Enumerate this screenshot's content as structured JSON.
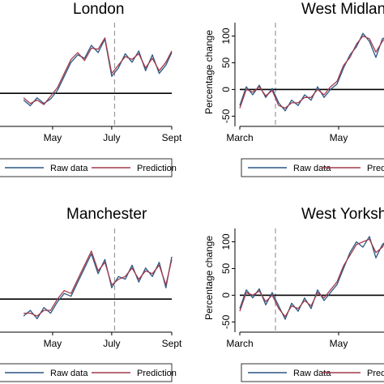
{
  "chart_data": [
    {
      "type": "line",
      "title": "London",
      "ylabel": "",
      "ylim": [
        -50,
        125
      ],
      "y_ticks": [],
      "x_ticks": [
        "May",
        "July",
        "Sept"
      ],
      "x_range": [
        "2020-03-01",
        "2020-09-01"
      ],
      "dashed_line_at": "2020-07-04",
      "legend": [
        "Raw data",
        "Prediction"
      ],
      "legend_placement": "bottom",
      "colors": {
        "raw": "#2a5783",
        "prediction": "#a23a4c"
      },
      "series": [
        {
          "name": "Raw data",
          "x": [
            "2020-04-01",
            "2020-04-08",
            "2020-04-15",
            "2020-04-22",
            "2020-04-29",
            "2020-05-06",
            "2020-05-13",
            "2020-05-20",
            "2020-05-27",
            "2020-06-03",
            "2020-06-10",
            "2020-06-17",
            "2020-06-24",
            "2020-07-01",
            "2020-07-08",
            "2020-07-15",
            "2020-07-22",
            "2020-07-29",
            "2020-08-05",
            "2020-08-12",
            "2020-08-19",
            "2020-08-26",
            "2020-09-01"
          ],
          "values": [
            -12,
            -22,
            -8,
            -18,
            -10,
            5,
            30,
            55,
            68,
            62,
            85,
            72,
            96,
            30,
            45,
            70,
            55,
            75,
            40,
            68,
            35,
            50,
            72
          ]
        },
        {
          "name": "Prediction",
          "x": [
            "2020-04-01",
            "2020-04-08",
            "2020-04-15",
            "2020-04-22",
            "2020-04-29",
            "2020-05-06",
            "2020-05-13",
            "2020-05-20",
            "2020-05-27",
            "2020-06-03",
            "2020-06-10",
            "2020-06-17",
            "2020-06-24",
            "2020-07-01",
            "2020-07-08",
            "2020-07-15",
            "2020-07-22",
            "2020-07-29",
            "2020-08-05",
            "2020-08-12",
            "2020-08-19",
            "2020-08-26",
            "2020-09-01"
          ],
          "values": [
            -8,
            -18,
            -12,
            -20,
            -5,
            10,
            35,
            60,
            72,
            58,
            80,
            78,
            98,
            35,
            50,
            65,
            60,
            70,
            45,
            62,
            40,
            55,
            75
          ]
        }
      ]
    },
    {
      "type": "line",
      "title": "West Midlands",
      "ylabel": "Percentage change",
      "ylim": [
        -60,
        125
      ],
      "y_ticks": [
        100,
        50,
        0,
        -50
      ],
      "x_ticks": [
        "March",
        "May"
      ],
      "x_range": [
        "2020-03-01",
        "2020-06-01"
      ],
      "dashed_line_at": "2020-03-23",
      "legend": [
        "Raw data",
        "Prediction"
      ],
      "legend_placement": "bottom",
      "colors": {
        "raw": "#2a5783",
        "prediction": "#a23a4c"
      },
      "series": [
        {
          "name": "Raw data",
          "x": [
            "2020-03-01",
            "2020-03-05",
            "2020-03-09",
            "2020-03-13",
            "2020-03-17",
            "2020-03-21",
            "2020-03-25",
            "2020-03-29",
            "2020-04-02",
            "2020-04-06",
            "2020-04-10",
            "2020-04-14",
            "2020-04-18",
            "2020-04-22",
            "2020-04-26",
            "2020-04-30",
            "2020-05-04",
            "2020-05-08",
            "2020-05-12",
            "2020-05-16",
            "2020-05-20",
            "2020-05-24",
            "2020-05-28",
            "2020-06-01"
          ],
          "values": [
            -30,
            5,
            -10,
            8,
            -15,
            2,
            -25,
            -40,
            -20,
            -30,
            -10,
            -20,
            5,
            -15,
            0,
            10,
            40,
            65,
            80,
            105,
            90,
            60,
            95,
            100
          ]
        },
        {
          "name": "Prediction",
          "x": [
            "2020-03-01",
            "2020-03-05",
            "2020-03-09",
            "2020-03-13",
            "2020-03-17",
            "2020-03-21",
            "2020-03-25",
            "2020-03-29",
            "2020-04-02",
            "2020-04-06",
            "2020-04-10",
            "2020-04-14",
            "2020-04-18",
            "2020-04-22",
            "2020-04-26",
            "2020-04-30",
            "2020-05-04",
            "2020-05-08",
            "2020-05-12",
            "2020-05-16",
            "2020-05-20",
            "2020-05-24",
            "2020-05-28",
            "2020-06-01"
          ],
          "values": [
            -35,
            0,
            -5,
            5,
            -12,
            -2,
            -30,
            -35,
            -25,
            -25,
            -15,
            -15,
            0,
            -10,
            5,
            15,
            45,
            60,
            85,
            100,
            95,
            70,
            90,
            105
          ]
        }
      ]
    },
    {
      "type": "line",
      "title": "Manchester",
      "ylabel": "",
      "ylim": [
        -50,
        125
      ],
      "y_ticks": [],
      "x_ticks": [
        "May",
        "July",
        "Sept"
      ],
      "x_range": [
        "2020-03-01",
        "2020-09-01"
      ],
      "dashed_line_at": "2020-07-04",
      "legend": [
        "Raw data",
        "Prediction"
      ],
      "legend_placement": "bottom",
      "colors": {
        "raw": "#2a5783",
        "prediction": "#a23a4c"
      },
      "series": [
        {
          "name": "Raw data",
          "x": [
            "2020-04-01",
            "2020-04-08",
            "2020-04-15",
            "2020-04-22",
            "2020-04-29",
            "2020-05-06",
            "2020-05-13",
            "2020-05-20",
            "2020-05-27",
            "2020-06-03",
            "2020-06-10",
            "2020-06-17",
            "2020-06-24",
            "2020-07-01",
            "2020-07-08",
            "2020-07-15",
            "2020-07-22",
            "2020-07-29",
            "2020-08-05",
            "2020-08-12",
            "2020-08-19",
            "2020-08-26",
            "2020-09-01"
          ],
          "values": [
            -30,
            -20,
            -35,
            -15,
            -25,
            -5,
            10,
            5,
            30,
            55,
            80,
            45,
            70,
            20,
            40,
            35,
            60,
            30,
            55,
            40,
            65,
            20,
            75
          ]
        },
        {
          "name": "Prediction",
          "x": [
            "2020-04-01",
            "2020-04-08",
            "2020-04-15",
            "2020-04-22",
            "2020-04-29",
            "2020-05-06",
            "2020-05-13",
            "2020-05-20",
            "2020-05-27",
            "2020-06-03",
            "2020-06-10",
            "2020-06-17",
            "2020-06-24",
            "2020-07-01",
            "2020-07-08",
            "2020-07-15",
            "2020-07-22",
            "2020-07-29",
            "2020-08-05",
            "2020-08-12",
            "2020-08-19",
            "2020-08-26",
            "2020-09-01"
          ],
          "values": [
            -25,
            -25,
            -30,
            -20,
            -20,
            0,
            15,
            10,
            35,
            60,
            85,
            50,
            65,
            25,
            35,
            40,
            55,
            35,
            50,
            45,
            60,
            25,
            70
          ]
        }
      ]
    },
    {
      "type": "line",
      "title": "West Yorkshire",
      "ylabel": "Percentage change",
      "ylim": [
        -60,
        125
      ],
      "y_ticks": [
        100,
        50,
        0,
        -50
      ],
      "x_ticks": [
        "March",
        "May"
      ],
      "x_range": [
        "2020-03-01",
        "2020-06-01"
      ],
      "dashed_line_at": "2020-03-23",
      "legend": [
        "Raw data",
        "Prediction"
      ],
      "legend_placement": "bottom",
      "colors": {
        "raw": "#2a5783",
        "prediction": "#a23a4c"
      },
      "series": [
        {
          "name": "Raw data",
          "x": [
            "2020-03-01",
            "2020-03-05",
            "2020-03-09",
            "2020-03-13",
            "2020-03-17",
            "2020-03-21",
            "2020-03-25",
            "2020-03-29",
            "2020-04-02",
            "2020-04-06",
            "2020-04-10",
            "2020-04-14",
            "2020-04-18",
            "2020-04-22",
            "2020-04-26",
            "2020-04-30",
            "2020-05-04",
            "2020-05-08",
            "2020-05-12",
            "2020-05-16",
            "2020-05-20",
            "2020-05-24",
            "2020-05-28",
            "2020-06-01"
          ],
          "values": [
            -25,
            10,
            -5,
            12,
            -18,
            5,
            -20,
            -45,
            -15,
            -30,
            -5,
            -25,
            10,
            -10,
            5,
            20,
            50,
            80,
            100,
            90,
            110,
            70,
            95,
            105
          ]
        },
        {
          "name": "Prediction",
          "x": [
            "2020-03-01",
            "2020-03-05",
            "2020-03-09",
            "2020-03-13",
            "2020-03-17",
            "2020-03-21",
            "2020-03-25",
            "2020-03-29",
            "2020-04-02",
            "2020-04-06",
            "2020-04-10",
            "2020-04-14",
            "2020-04-18",
            "2020-04-22",
            "2020-04-26",
            "2020-04-30",
            "2020-05-04",
            "2020-05-08",
            "2020-05-12",
            "2020-05-16",
            "2020-05-20",
            "2020-05-24",
            "2020-05-28",
            "2020-06-01"
          ],
          "values": [
            -30,
            5,
            0,
            8,
            -12,
            0,
            -25,
            -40,
            -20,
            -25,
            -10,
            -20,
            5,
            -5,
            10,
            25,
            55,
            75,
            95,
            100,
            105,
            80,
            90,
            110
          ]
        }
      ]
    }
  ]
}
